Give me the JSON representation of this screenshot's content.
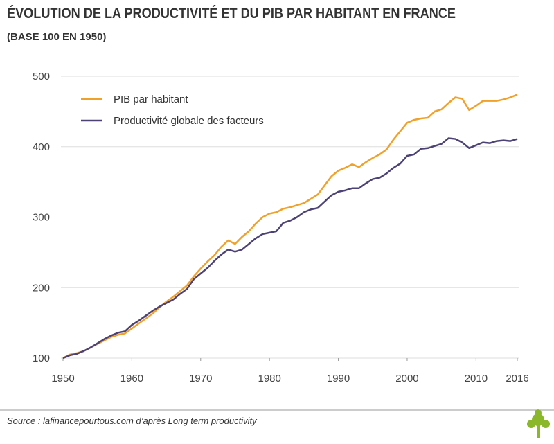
{
  "chart_data": {
    "type": "line",
    "title": "ÉVOLUTION DE LA PRODUCTIVITÉ ET DU PIB PAR HABITANT EN FRANCE",
    "subtitle": "(BASE 100 EN 1950)",
    "source": "Source : lafinancepourtous.com d’après Long term productivity",
    "x": [
      1950,
      1951,
      1952,
      1953,
      1954,
      1955,
      1956,
      1957,
      1958,
      1959,
      1960,
      1961,
      1962,
      1963,
      1964,
      1965,
      1966,
      1967,
      1968,
      1969,
      1970,
      1971,
      1972,
      1973,
      1974,
      1975,
      1976,
      1977,
      1978,
      1979,
      1980,
      1981,
      1982,
      1983,
      1984,
      1985,
      1986,
      1987,
      1988,
      1989,
      1990,
      1991,
      1992,
      1993,
      1994,
      1995,
      1996,
      1997,
      1998,
      1999,
      2000,
      2001,
      2002,
      2003,
      2004,
      2005,
      2006,
      2007,
      2008,
      2009,
      2010,
      2011,
      2012,
      2013,
      2014,
      2015,
      2016
    ],
    "series": [
      {
        "name": "PIB par habitant",
        "color": "#f0a12a",
        "values": [
          100,
          105,
          107,
          110,
          115,
          120,
          125,
          130,
          133,
          135,
          142,
          149,
          156,
          163,
          172,
          180,
          187,
          195,
          203,
          216,
          227,
          237,
          246,
          258,
          267,
          262,
          272,
          280,
          291,
          300,
          305,
          307,
          312,
          314,
          317,
          320,
          326,
          332,
          345,
          358,
          366,
          370,
          375,
          371,
          378,
          384,
          389,
          396,
          410,
          422,
          434,
          438,
          440,
          441,
          450,
          453,
          462,
          470,
          468,
          452,
          458,
          465,
          465,
          465,
          467,
          470,
          474
        ]
      },
      {
        "name": "Productivité globale des facteurs",
        "color": "#4d4275",
        "values": [
          100,
          104,
          106,
          110,
          115,
          121,
          127,
          132,
          136,
          138,
          147,
          153,
          160,
          167,
          173,
          178,
          183,
          191,
          198,
          212,
          220,
          228,
          238,
          247,
          254,
          251,
          254,
          262,
          270,
          276,
          278,
          280,
          292,
          295,
          300,
          307,
          311,
          313,
          322,
          331,
          336,
          338,
          341,
          341,
          348,
          354,
          356,
          362,
          370,
          376,
          387,
          389,
          397,
          398,
          401,
          404,
          412,
          411,
          406,
          398,
          402,
          406,
          405,
          408,
          409,
          408,
          411
        ]
      }
    ],
    "xlim": [
      1950,
      2016
    ],
    "xticks": [
      1950,
      1960,
      1970,
      1980,
      1990,
      2000,
      2010,
      2016
    ],
    "ylim": [
      100,
      500
    ],
    "yticks": [
      100,
      200,
      300,
      400,
      500
    ],
    "grid": true,
    "legend": "top-left"
  }
}
